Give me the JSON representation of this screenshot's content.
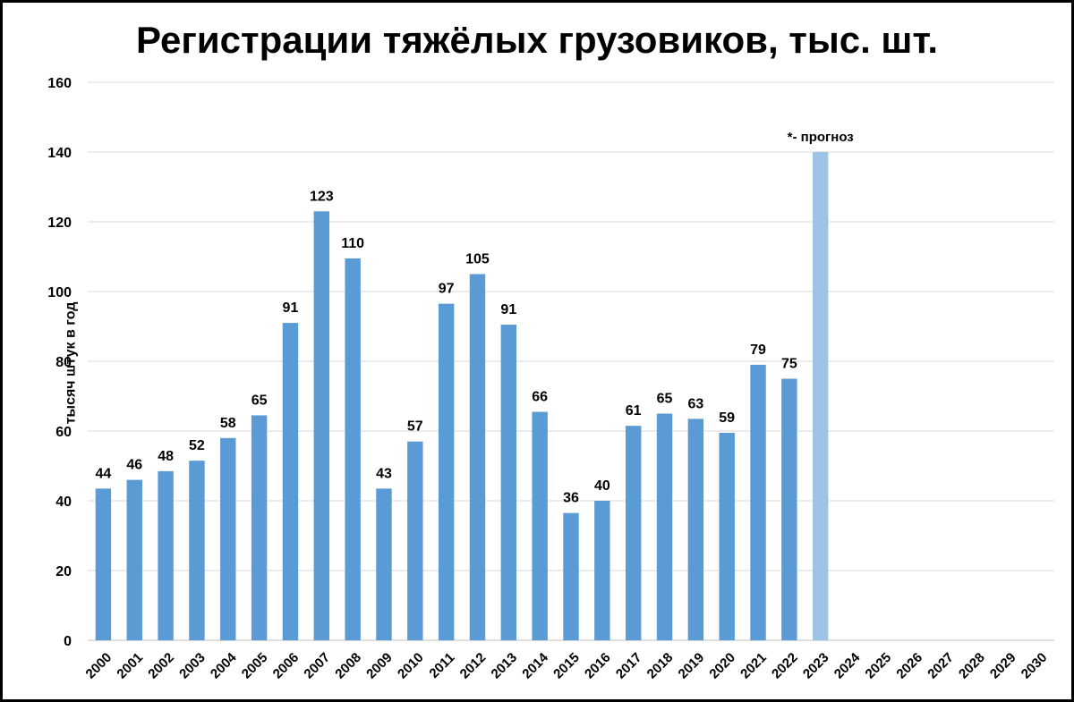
{
  "chart_data": {
    "type": "bar",
    "title": "Регистрации тяжёлых грузовиков, тыс. шт.",
    "ylabel": "тысяч штук в год",
    "xlabel": "",
    "ylim": [
      0,
      160
    ],
    "yticks": [
      0,
      20,
      40,
      60,
      80,
      100,
      120,
      140,
      160
    ],
    "grid": true,
    "categories": [
      "2000",
      "2001",
      "2002",
      "2003",
      "2004",
      "2005",
      "2006",
      "2007",
      "2008",
      "2009",
      "2010",
      "2011",
      "2012",
      "2013",
      "2014",
      "2015",
      "2016",
      "2017",
      "2018",
      "2019",
      "2020",
      "2021",
      "2022",
      "2023",
      "2024",
      "2025",
      "2026",
      "2027",
      "2028",
      "2029",
      "2030"
    ],
    "values": [
      43.5,
      46,
      48.5,
      51.5,
      58,
      64.5,
      91,
      123,
      109.5,
      43.5,
      57,
      96.5,
      105,
      90.5,
      65.5,
      36.5,
      40,
      61.5,
      65,
      63.5,
      59.5,
      79,
      75,
      140,
      null,
      null,
      null,
      null,
      null,
      null,
      null
    ],
    "data_labels": [
      "44",
      "46",
      "48",
      "52",
      "58",
      "65",
      "91",
      "123",
      "110",
      "43",
      "57",
      "97",
      "105",
      "91",
      "66",
      "36",
      "40",
      "61",
      "65",
      "63",
      "59",
      "79",
      "75",
      "",
      "",
      "",
      "",
      "",
      "",
      "",
      ""
    ],
    "forecast_index": 23,
    "annotation": "*- прогноз",
    "colors": {
      "bar": "#5b9bd5",
      "forecast": "#9dc3e6",
      "grid": "#d9d9d9"
    }
  }
}
